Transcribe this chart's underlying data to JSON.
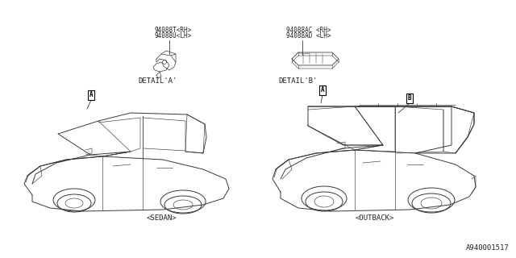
{
  "bg_color": "#ffffff",
  "line_color": "#3a3a3a",
  "text_color": "#222222",
  "part_labels_left": [
    "94088T<RH>",
    "94088U<LH>"
  ],
  "part_labels_right": [
    "94088AC <RH>",
    "94088AD <LH>"
  ],
  "detail_a_label": "DETAIL'A'",
  "detail_b_label": "DETAIL'B'",
  "sedan_label": "<SEDAN>",
  "outback_label": "<OUTBACK>",
  "ref_a_label": "A",
  "ref_b_label": "B",
  "diagram_id": "A940001517",
  "font_size_part": 5.5,
  "font_size_detail": 6.5,
  "font_size_car": 6.5,
  "font_size_id": 6.5
}
